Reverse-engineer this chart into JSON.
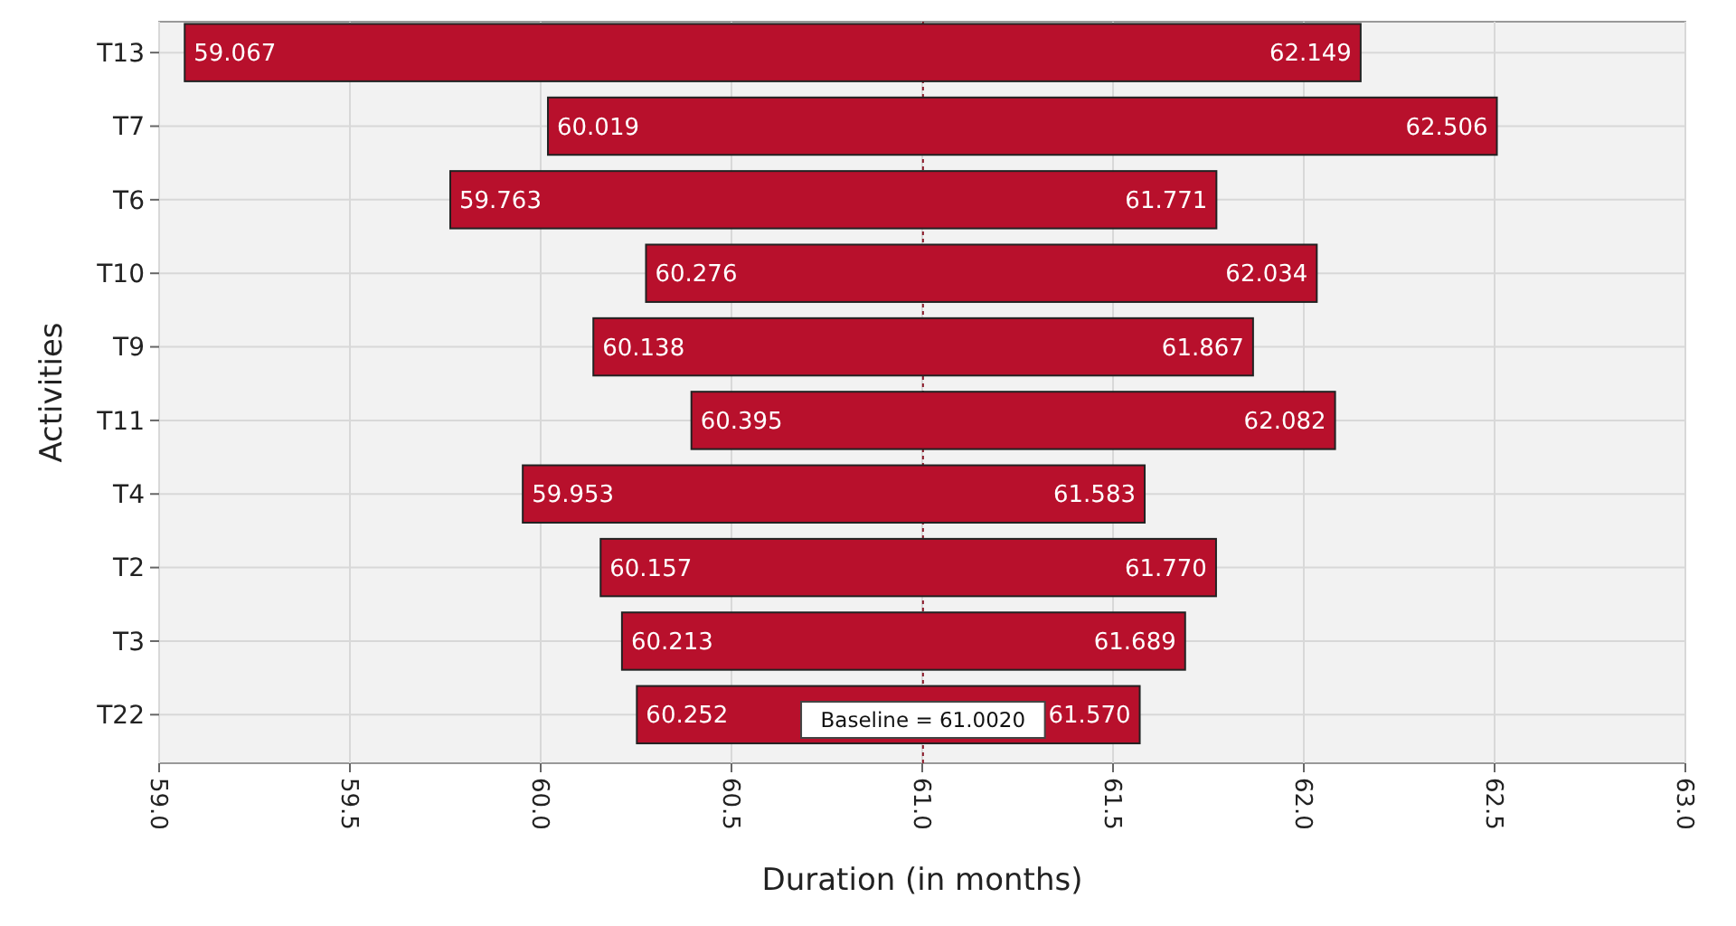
{
  "chart_data": {
    "type": "bar",
    "orientation": "horizontal",
    "xlabel": "Duration (in months)",
    "ylabel": "Activities",
    "categories": [
      "T13",
      "T7",
      "T6",
      "T10",
      "T9",
      "T11",
      "T4",
      "T2",
      "T3",
      "T22"
    ],
    "base": [
      59.067,
      60.019,
      59.763,
      60.276,
      60.138,
      60.395,
      59.953,
      60.157,
      60.213,
      60.252
    ],
    "values": [
      3.082,
      2.487,
      2.008,
      1.758,
      1.729,
      1.687,
      1.63,
      1.613,
      1.476,
      1.318
    ],
    "color": "#b8102c",
    "xlim": [
      59,
      63
    ],
    "xticks": [
      {
        "value": 59,
        "label": "59.0"
      },
      {
        "value": 59.5,
        "label": "59.5"
      },
      {
        "value": 60,
        "label": "60.0"
      },
      {
        "value": 60.5,
        "label": "60.5"
      },
      {
        "value": 61,
        "label": "61.0"
      },
      {
        "value": 61.5,
        "label": "61.5"
      },
      {
        "value": 62,
        "label": "62.0"
      },
      {
        "value": 62.5,
        "label": "62.5"
      },
      {
        "value": 63,
        "label": "63.0"
      }
    ],
    "grid": true,
    "ref_lines": [
      {
        "axis": "x",
        "value": 61.002,
        "label": "Baseline = 61.0020",
        "color": "#8b1a2a",
        "line_style": "dotted"
      }
    ],
    "annotations": [
      {
        "text": "59.067",
        "x": 59.067,
        "y": "T13"
      },
      {
        "text": "62.149",
        "x": 62.149,
        "y": "T13"
      },
      {
        "text": "60.019",
        "x": 60.019,
        "y": "T7"
      },
      {
        "text": "62.506",
        "x": 62.506,
        "y": "T7"
      },
      {
        "text": "59.763",
        "x": 59.763,
        "y": "T6"
      },
      {
        "text": "61.771",
        "x": 61.771,
        "y": "T6"
      },
      {
        "text": "60.276",
        "x": 60.276,
        "y": "T10"
      },
      {
        "text": "62.034",
        "x": 62.034,
        "y": "T10"
      },
      {
        "text": "60.138",
        "x": 60.138,
        "y": "T9"
      },
      {
        "text": "61.867",
        "x": 61.867,
        "y": "T9"
      },
      {
        "text": "60.395",
        "x": 60.395,
        "y": "T11"
      },
      {
        "text": "62.082",
        "x": 62.082,
        "y": "T11"
      },
      {
        "text": "59.953",
        "x": 59.953,
        "y": "T4"
      },
      {
        "text": "61.583",
        "x": 61.583,
        "y": "T4"
      },
      {
        "text": "60.157",
        "x": 60.157,
        "y": "T2"
      },
      {
        "text": "61.770",
        "x": 61.77,
        "y": "T2"
      },
      {
        "text": "60.213",
        "x": 60.213,
        "y": "T3"
      },
      {
        "text": "61.689",
        "x": 61.689,
        "y": "T3"
      },
      {
        "text": "60.252",
        "x": 60.252,
        "y": "T22"
      },
      {
        "text": "61.570",
        "x": 61.57,
        "y": "T22"
      }
    ]
  }
}
